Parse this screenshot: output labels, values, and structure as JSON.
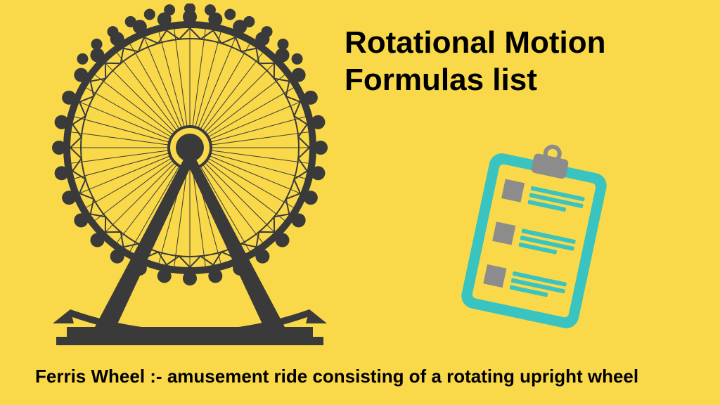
{
  "title_line1": "Rotational Motion",
  "title_line2": "Formulas list",
  "caption": "Ferris Wheel :- amusement ride consisting of a rotating upright wheel",
  "colors": {
    "background": "#f9d949",
    "text": "#000000",
    "wheel": "#3a3a3a",
    "clipboard_board": "#39c3c1",
    "clipboard_paper": "#f9d949",
    "clipboard_clip": "#8c8c8c",
    "checkbox": "#8c8c8c",
    "line": "#39c3c1"
  },
  "ferris": {
    "spokes": 48,
    "cabins": 32,
    "triangles": 32,
    "radius_outer": 180,
    "radius_inner": 170,
    "radius_deco": 155,
    "hub_outer": 30,
    "hub_inner": 20,
    "cabin_radius": 10,
    "top_cabin_radius": 8
  },
  "clipboard": {
    "rotation_deg": 12,
    "items": 3,
    "lines_per_item": 3
  },
  "title_fontsize": 44,
  "caption_fontsize": 26
}
